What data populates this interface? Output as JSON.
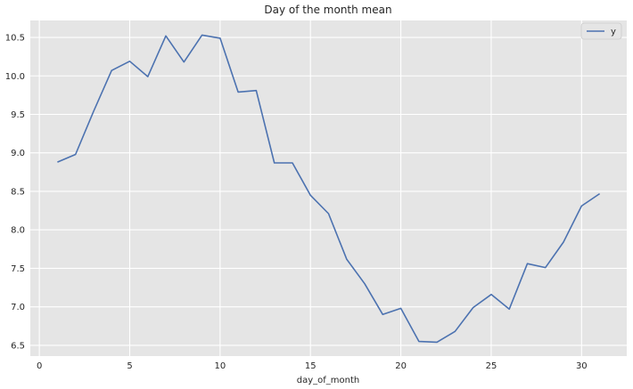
{
  "chart_data": {
    "type": "line",
    "title": "Day of the month mean",
    "xlabel": "day_of_month",
    "ylabel": "",
    "xlim": [
      -0.5,
      32.5
    ],
    "ylim": [
      6.36,
      10.72
    ],
    "xticks": [
      0,
      5,
      10,
      15,
      20,
      25,
      30
    ],
    "yticks": [
      6.5,
      7.0,
      7.5,
      8.0,
      8.5,
      9.0,
      9.5,
      10.0,
      10.5
    ],
    "ytick_labels": [
      "6.5",
      "7.0",
      "7.5",
      "8.0",
      "8.5",
      "9.0",
      "9.5",
      "10.0",
      "10.5"
    ],
    "grid": true,
    "legend_position": "top-right",
    "series": [
      {
        "name": "y",
        "color": "#4c72b0",
        "x": [
          1,
          2,
          3,
          4,
          5,
          6,
          7,
          8,
          9,
          10,
          11,
          12,
          13,
          14,
          15,
          16,
          17,
          18,
          19,
          20,
          21,
          22,
          23,
          24,
          25,
          26,
          27,
          28,
          29,
          30,
          31
        ],
        "values": [
          8.88,
          8.98,
          9.54,
          10.07,
          10.19,
          9.99,
          10.52,
          10.18,
          10.53,
          10.49,
          9.79,
          9.81,
          8.87,
          8.87,
          8.45,
          8.21,
          7.62,
          7.3,
          6.9,
          6.98,
          6.55,
          6.54,
          6.68,
          6.99,
          7.16,
          6.97,
          7.56,
          7.51,
          7.84,
          8.31,
          8.47
        ]
      }
    ]
  },
  "colors": {
    "plot_background": "#e5e5e5",
    "grid": "#ffffff",
    "line": "#4c72b0"
  }
}
